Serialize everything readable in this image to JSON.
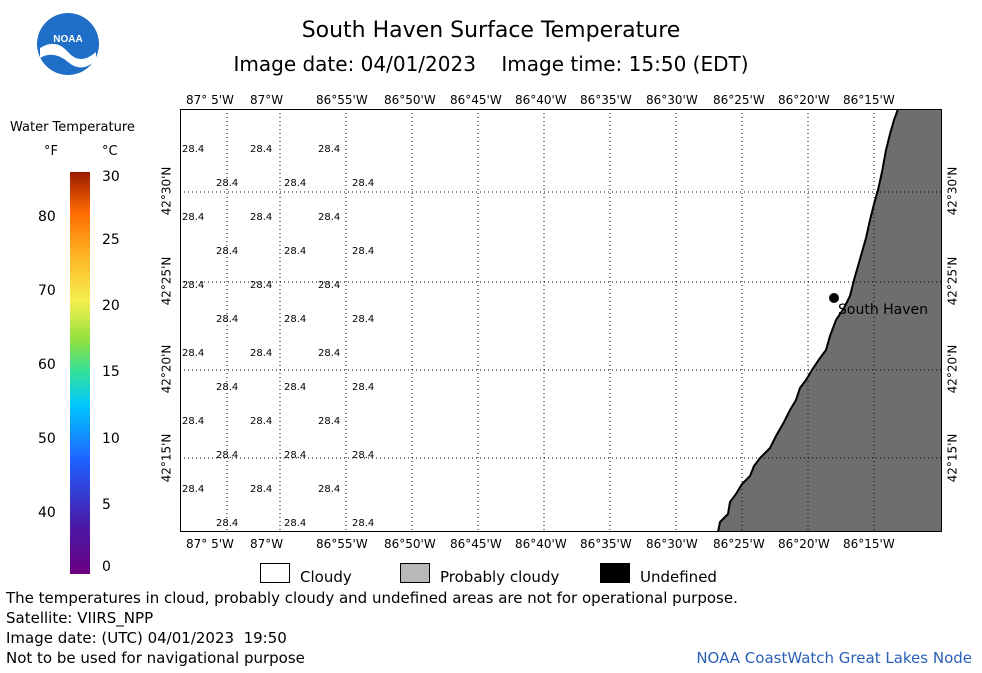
{
  "title": "South Haven Surface Temperature",
  "subtitle": "Image date: 04/01/2023    Image time: 15:50 (EDT)",
  "legend": {
    "title": "Water Temperature",
    "unit_f": "°F",
    "unit_c": "°C",
    "f_ticks": [
      "80",
      "70",
      "60",
      "50",
      "40"
    ],
    "c_ticks": [
      "30",
      "25",
      "20",
      "15",
      "10",
      "5",
      "0"
    ]
  },
  "map": {
    "lon_labels": [
      "87° 5'W",
      "87°W",
      "86°55'W",
      "86°50'W",
      "86°45'W",
      "86°40'W",
      "86°35'W",
      "86°30'W",
      "86°25'W",
      "86°20'W",
      "86°15'W"
    ],
    "lat_labels": [
      "42°30'N",
      "42°25'N",
      "42°20'N",
      "42°15'N"
    ],
    "temp_value": "28.4",
    "city_label": "South Haven"
  },
  "categories": {
    "cloudy": "Cloudy",
    "probably_cloudy": "Probably cloudy",
    "undefined": "Undefined"
  },
  "footer": {
    "note": "The temperatures in cloud, probably cloudy and undefined areas are not for operational purpose.",
    "satellite": "Satellite: VIIRS_NPP",
    "utc_date": "Image date: (UTC) 04/01/2023  19:50",
    "nav": "Not to be used for navigational purpose",
    "credit": "NOAA CoastWatch Great Lakes Node"
  },
  "colors": {
    "land": "#6e6e6e",
    "noaa_blue": "#1f6fc8"
  }
}
